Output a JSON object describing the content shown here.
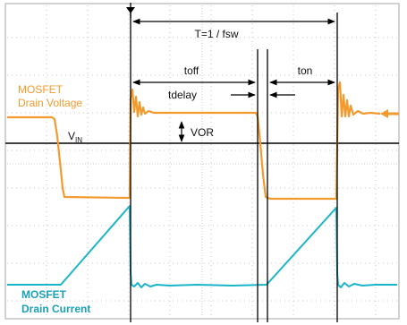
{
  "annotations": {
    "period": "T=1 / fsw",
    "toff": "toff",
    "ton": "ton",
    "tdelay": "tdelay",
    "vor": "VOR",
    "vin_main": "V",
    "vin_sub": "IN"
  },
  "traces": {
    "voltage": {
      "label_line1": "MOSFET",
      "label_line2": "Drain Voltage",
      "color": "#f39a2e"
    },
    "current": {
      "label_line1": "MOSFET",
      "label_line2": "Drain Current",
      "color": "#1ab5c8"
    }
  },
  "colors": {
    "grid": "#c8c8c8",
    "frame": "#b5b5b5",
    "markers": "#000000",
    "background": "#ffffff"
  }
}
